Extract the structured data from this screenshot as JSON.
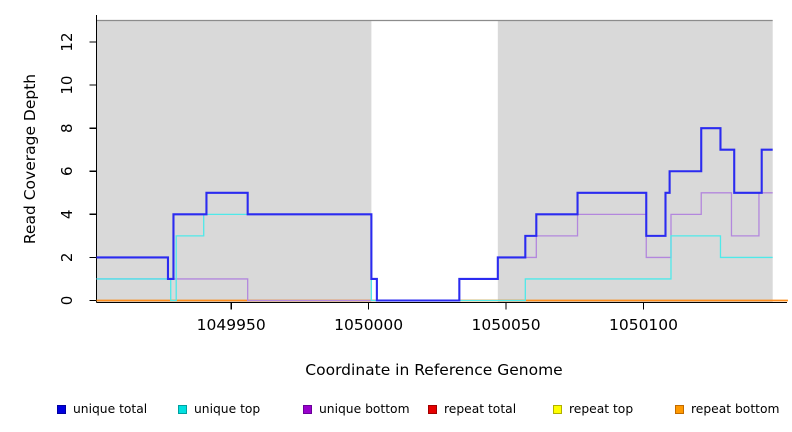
{
  "chart_data": {
    "type": "line",
    "subtype": "step-coverage",
    "title": "",
    "xlabel": "Coordinate in Reference Genome",
    "ylabel": "Read Coverage Depth",
    "xlim": [
      1049901,
      1050147
    ],
    "ylim": [
      0,
      13
    ],
    "x_ticks": [
      1049950,
      1050000,
      1050050,
      1050100
    ],
    "y_ticks": [
      0,
      2,
      4,
      6,
      8,
      10,
      12
    ],
    "grid": "off",
    "legend_position": "bottom",
    "axis_color": "#000000",
    "plot_top_border_color": "#8c8c8c",
    "background_regions": [
      {
        "label": "repeat-region-left",
        "x0": 1049901,
        "x1": 1050001,
        "color": "#d9d9d9"
      },
      {
        "label": "repeat-region-right",
        "x0": 1050047,
        "x1": 1050147,
        "color": "#d9d9d9"
      }
    ],
    "series": [
      {
        "name": "unique total",
        "line_color": "#2b2bf0",
        "legend_fill": "#0000e0",
        "legend_border": "#0000a0",
        "line_width": 2.1,
        "z": 6,
        "x_end": 1050147,
        "steps": [
          [
            1049901,
            2
          ],
          [
            1049927,
            1
          ],
          [
            1049929,
            4
          ],
          [
            1049941,
            5
          ],
          [
            1049956,
            4
          ],
          [
            1050001,
            1
          ],
          [
            1050003,
            0
          ],
          [
            1050033,
            1
          ],
          [
            1050047,
            2
          ],
          [
            1050057,
            3
          ],
          [
            1050061,
            4
          ],
          [
            1050076,
            5
          ],
          [
            1050101,
            3
          ],
          [
            1050108,
            5
          ],
          [
            1050109.5,
            6
          ],
          [
            1050121,
            8
          ],
          [
            1050128,
            7
          ],
          [
            1050133,
            5
          ],
          [
            1050143,
            7
          ]
        ]
      },
      {
        "name": "unique top",
        "line_color": "#4fe9e9",
        "legend_fill": "#00e0e0",
        "legend_border": "#00a0a0",
        "line_width": 1.3,
        "z": 5,
        "x_end": 1050147,
        "steps": [
          [
            1049901,
            1
          ],
          [
            1049928,
            0
          ],
          [
            1049930,
            3
          ],
          [
            1049940,
            4
          ],
          [
            1050001,
            0
          ],
          [
            1050057,
            1
          ],
          [
            1050110,
            3
          ],
          [
            1050128,
            2
          ]
        ]
      },
      {
        "name": "unique bottom",
        "line_color": "#b387dd",
        "legend_fill": "#9900cc",
        "legend_border": "#6a0099",
        "line_width": 1.3,
        "z": 4,
        "x_end": 1050147,
        "steps": [
          [
            1049901,
            1
          ],
          [
            1049956,
            0
          ],
          [
            1050033,
            1
          ],
          [
            1050047,
            2
          ],
          [
            1050061,
            3
          ],
          [
            1050076,
            4
          ],
          [
            1050101,
            2
          ],
          [
            1050110,
            4
          ],
          [
            1050121,
            5
          ],
          [
            1050132,
            3
          ],
          [
            1050142,
            5
          ]
        ]
      },
      {
        "name": "repeat total",
        "line_color": "#e60000",
        "legend_fill": "#e60000",
        "legend_border": "#a00000",
        "line_width": 1.3,
        "z": 1,
        "x_end": 1050152.5,
        "steps": [
          [
            1049901,
            0
          ]
        ]
      },
      {
        "name": "repeat top",
        "line_color": "#f5e900",
        "legend_fill": "#ffff00",
        "legend_border": "#b0b000",
        "line_width": 1.3,
        "z": 2,
        "x_end": 1050152.5,
        "steps": [
          [
            1049901,
            0
          ]
        ]
      },
      {
        "name": "repeat bottom",
        "line_color": "#ff8c1a",
        "legend_fill": "#ff9900",
        "legend_border": "#c06a00",
        "line_width": 1.5,
        "z": 3,
        "x_end": 1050152.5,
        "steps": [
          [
            1049901,
            0
          ]
        ]
      }
    ]
  }
}
